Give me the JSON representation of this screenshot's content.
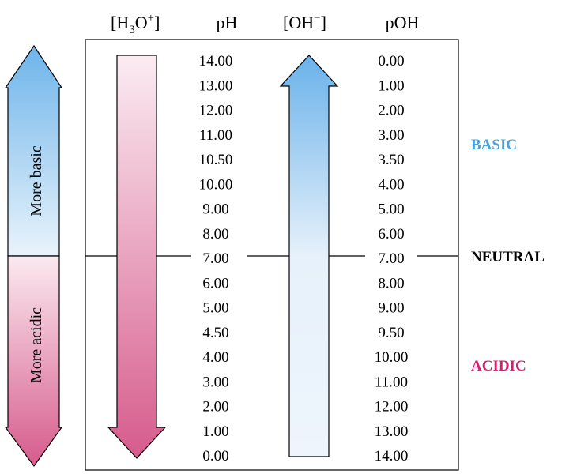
{
  "headers": {
    "h3o_prefix": "[H",
    "h3o_sub": "3",
    "h3o_mid": "O",
    "h3o_sup": "+",
    "h3o_suffix": "]",
    "ph": "pH",
    "oh_prefix": "[OH",
    "oh_sup": "−",
    "oh_suffix": "]",
    "poh": "pOH"
  },
  "ph_values": [
    "14.00",
    "13.00",
    "12.00",
    "11.00",
    "10.50",
    "10.00",
    "9.00",
    "8.00",
    "7.00",
    "6.00",
    "5.00",
    "4.50",
    "4.00",
    "3.00",
    "2.00",
    "1.00",
    "0.00"
  ],
  "poh_values": [
    "0.00",
    "1.00",
    "2.00",
    "3.00",
    "3.50",
    "4.00",
    "5.00",
    "6.00",
    "7.00",
    "8.00",
    "9.00",
    "9.50",
    "10.00",
    "11.00",
    "12.00",
    "13.00",
    "14.00"
  ],
  "side_arrow": {
    "top_label": "More basic",
    "bottom_label": "More acidic"
  },
  "labels": {
    "basic": "BASIC",
    "neutral": "NEUTRAL",
    "acidic": "ACIDIC"
  },
  "colors": {
    "basic": "#4aa3df",
    "acidic": "#d0206f",
    "neutral": "#000000",
    "blue_dark": "#74b8ea",
    "blue_light": "#e8f2fb",
    "pink_light": "#fbe8ee",
    "pink_dark": "#d65b8c"
  }
}
